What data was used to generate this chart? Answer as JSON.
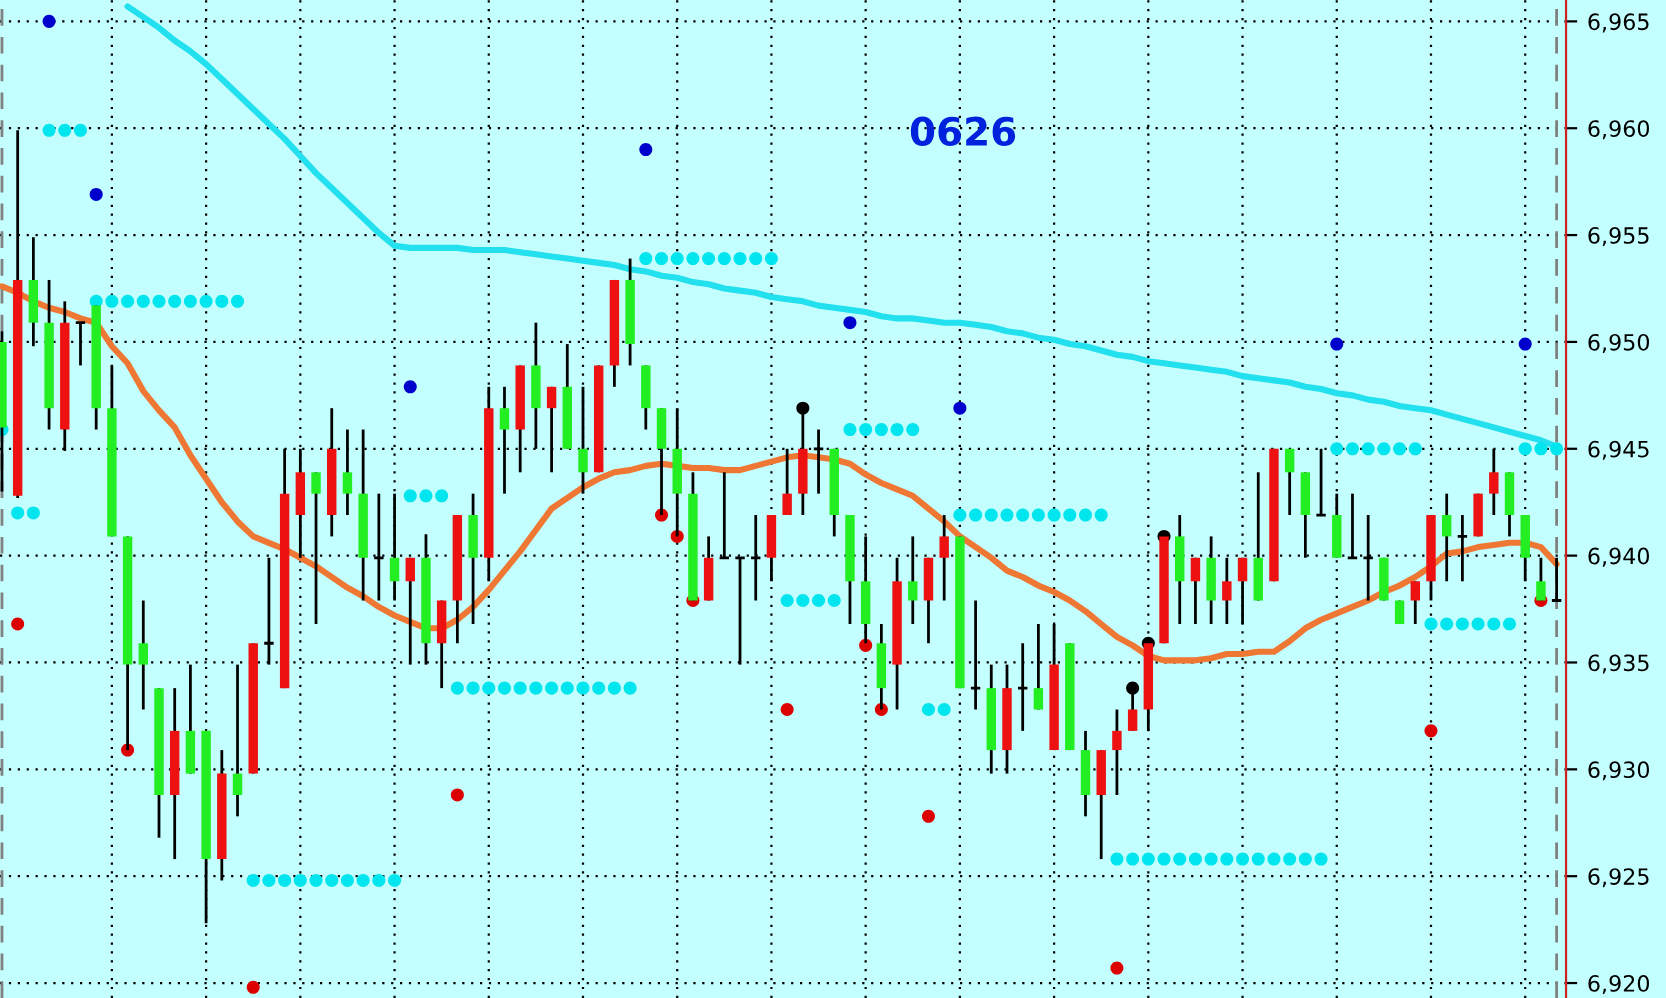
{
  "chart_data": {
    "type": "candlestick",
    "title": "0626",
    "categories": [
      null,
      null,
      null,
      null,
      null,
      null,
      null,
      null,
      null,
      null,
      null,
      null,
      null,
      null,
      null,
      null,
      null,
      null,
      null,
      null,
      null,
      null,
      null,
      null,
      null,
      null,
      null,
      null,
      null,
      null,
      null,
      null,
      null,
      null,
      null,
      null,
      null,
      null,
      null,
      null,
      null,
      null,
      null,
      null,
      null,
      null,
      null,
      null,
      null,
      null,
      null,
      null,
      null,
      null,
      null,
      null,
      null,
      null,
      null,
      null,
      null,
      null,
      null,
      null,
      null,
      null,
      null,
      null,
      null,
      null,
      null,
      null,
      null,
      null,
      null,
      null,
      null,
      null,
      null,
      null,
      null,
      null,
      null,
      null,
      null,
      null,
      null,
      null,
      null,
      null,
      null,
      null,
      null,
      null,
      null,
      null,
      null,
      null,
      null,
      null
    ],
    "ohlc": [
      [
        6950,
        6950.5,
        6943,
        6946
      ],
      [
        6942.8,
        6959.9,
        6942.7,
        6952.9
      ],
      [
        6952.9,
        6954.9,
        6949.8,
        6950.9
      ],
      [
        6950.9,
        6952.9,
        6945.9,
        6946.9
      ],
      [
        6945.9,
        6951.9,
        6944.9,
        6950.9
      ],
      [
        6950.9,
        6950.9,
        6948.9,
        6950.9
      ],
      [
        6951.7,
        6951.7,
        6945.9,
        6946.9
      ],
      [
        6946.9,
        6948.9,
        6940.9,
        6940.9
      ],
      [
        6940.9,
        6940.9,
        6930.9,
        6934.9
      ],
      [
        6935.9,
        6937.9,
        6932.8,
        6934.9
      ],
      [
        6933.8,
        6933.8,
        6926.8,
        6928.8
      ],
      [
        6928.8,
        6933.8,
        6925.8,
        6931.8
      ],
      [
        6931.8,
        6934.9,
        6929.8,
        6929.8
      ],
      [
        6931.8,
        6931.8,
        6922.8,
        6925.8
      ],
      [
        6925.8,
        6930.9,
        6924.8,
        6929.8
      ],
      [
        6929.8,
        6934.9,
        6927.8,
        6928.8
      ],
      [
        6929.8,
        6935.9,
        6929.8,
        6935.9
      ],
      [
        6935.9,
        6939.9,
        6934.9,
        6935.9
      ],
      [
        6933.8,
        6945,
        6933.8,
        6942.9
      ],
      [
        6941.9,
        6945,
        6939.9,
        6943.9
      ],
      [
        6943.9,
        6943.9,
        6936.8,
        6942.9
      ],
      [
        6941.9,
        6946.9,
        6940.9,
        6945
      ],
      [
        6943.9,
        6945.9,
        6941.9,
        6942.9
      ],
      [
        6942.9,
        6945.9,
        6937.9,
        6939.9
      ],
      [
        6939.9,
        6942.9,
        6937.9,
        6939.9
      ],
      [
        6939.9,
        6942.9,
        6937.9,
        6938.8
      ],
      [
        6938.8,
        6939.9,
        6934.9,
        6939.9
      ],
      [
        6939.9,
        6941,
        6934.9,
        6935.9
      ],
      [
        6935.9,
        6937.9,
        6933.8,
        6937.9
      ],
      [
        6937.9,
        6941.9,
        6935.9,
        6941.9
      ],
      [
        6941.9,
        6942.9,
        6936.8,
        6939.9
      ],
      [
        6939.9,
        6947.9,
        6938.8,
        6946.9
      ],
      [
        6946.9,
        6947.9,
        6942.9,
        6945.9
      ],
      [
        6945.9,
        6948.9,
        6943.9,
        6948.9
      ],
      [
        6948.9,
        6950.9,
        6945,
        6946.9
      ],
      [
        6946.9,
        6947.9,
        6943.9,
        6947.9
      ],
      [
        6947.9,
        6949.9,
        6945,
        6945
      ],
      [
        6945,
        6947.9,
        6942.9,
        6943.9
      ],
      [
        6943.9,
        6948.9,
        6943.9,
        6948.9
      ],
      [
        6948.9,
        6952.9,
        6947.9,
        6952.9
      ],
      [
        6952.9,
        6953.9,
        6948.9,
        6949.9
      ],
      [
        6948.9,
        6948.9,
        6945.9,
        6946.9
      ],
      [
        6946.9,
        6946.9,
        6941.9,
        6945
      ],
      [
        6945,
        6946.9,
        6940.9,
        6942.9
      ],
      [
        6942.9,
        6943.9,
        6937.9,
        6937.9
      ],
      [
        6937.9,
        6940.9,
        6937.9,
        6939.9
      ],
      [
        6939.9,
        6943.9,
        6939.9,
        6939.9
      ],
      [
        6939.9,
        6939.9,
        6934.9,
        6939.9
      ],
      [
        6939.9,
        6941.9,
        6937.9,
        6939.9
      ],
      [
        6939.9,
        6941.9,
        6938.8,
        6941.9
      ],
      [
        6941.9,
        6945,
        6941.9,
        6942.9
      ],
      [
        6942.9,
        6946.9,
        6941.9,
        6945
      ],
      [
        6945,
        6945.9,
        6942.9,
        6945
      ],
      [
        6945,
        6945,
        6940.9,
        6941.9
      ],
      [
        6941.9,
        6941.9,
        6936.8,
        6938.8
      ],
      [
        6938.8,
        6940.9,
        6935.9,
        6936.8
      ],
      [
        6935.9,
        6936.8,
        6932.8,
        6933.8
      ],
      [
        6934.9,
        6939.9,
        6932.8,
        6938.8
      ],
      [
        6938.8,
        6940.9,
        6936.8,
        6937.9
      ],
      [
        6937.9,
        6939.9,
        6935.9,
        6939.9
      ],
      [
        6939.9,
        6941.9,
        6937.9,
        6940.9
      ],
      [
        6940.9,
        6940.9,
        6933.8,
        6933.8
      ],
      [
        6933.8,
        6937.9,
        6932.8,
        6933.8
      ],
      [
        6933.8,
        6934.9,
        6929.8,
        6930.9
      ],
      [
        6930.9,
        6934.9,
        6929.8,
        6933.8
      ],
      [
        6933.8,
        6935.9,
        6931.8,
        6933.8
      ],
      [
        6933.8,
        6936.8,
        6932.8,
        6932.8
      ],
      [
        6930.9,
        6936.8,
        6930.9,
        6934.9
      ],
      [
        6935.9,
        6935.9,
        6930.9,
        6930.9
      ],
      [
        6930.9,
        6931.8,
        6927.8,
        6928.8
      ],
      [
        6928.8,
        6930.9,
        6925.8,
        6930.9
      ],
      [
        6930.9,
        6932.8,
        6928.8,
        6931.8
      ],
      [
        6931.8,
        6933.8,
        6931.8,
        6932.8
      ],
      [
        6932.8,
        6935.9,
        6931.8,
        6935.9
      ],
      [
        6935.9,
        6940.9,
        6935.9,
        6940.9
      ],
      [
        6940.9,
        6941.9,
        6936.8,
        6938.8
      ],
      [
        6938.8,
        6939.9,
        6936.8,
        6939.9
      ],
      [
        6939.9,
        6940.9,
        6936.8,
        6937.9
      ],
      [
        6937.9,
        6939.9,
        6936.8,
        6938.8
      ],
      [
        6938.8,
        6939.9,
        6936.8,
        6939.9
      ],
      [
        6939.9,
        6943.9,
        6937.9,
        6937.9
      ],
      [
        6938.8,
        6945,
        6938.8,
        6945
      ],
      [
        6945,
        6945,
        6941.9,
        6943.9
      ],
      [
        6943.9,
        6943.9,
        6939.9,
        6941.9
      ],
      [
        6941.9,
        6945,
        6941.9,
        6941.9
      ],
      [
        6941.9,
        6942.9,
        6939.9,
        6939.9
      ],
      [
        6939.9,
        6942.9,
        6939.9,
        6939.9
      ],
      [
        6939.9,
        6941.9,
        6937.9,
        6939.9
      ],
      [
        6939.9,
        6939.9,
        6937.9,
        6937.9
      ],
      [
        6937.9,
        6937.9,
        6936.8,
        6936.8
      ],
      [
        6937.9,
        6938.8,
        6936.8,
        6938.8
      ],
      [
        6938.8,
        6941.9,
        6937.9,
        6941.9
      ],
      [
        6941.9,
        6942.9,
        6938.8,
        6940.9
      ],
      [
        6940.9,
        6941.9,
        6938.8,
        6940.9
      ],
      [
        6940.9,
        6942.9,
        6940.9,
        6942.9
      ],
      [
        6942.9,
        6945,
        6941.9,
        6943.9
      ],
      [
        6943.9,
        6943.9,
        6940.9,
        6941.9
      ],
      [
        6941.9,
        6941.9,
        6938.8,
        6939.9
      ],
      [
        6938.8,
        6939.9,
        6937.9,
        6937.9
      ],
      [
        6937.9,
        6939.9,
        6937.9,
        6937.9
      ]
    ],
    "colors": [
      "#22ee22",
      "#ee1111",
      "#22ee22",
      "#22ee22",
      "#ee1111",
      "#000000",
      "#22ee22",
      "#22ee22",
      "#22ee22",
      "#22ee22",
      "#22ee22",
      "#ee1111",
      "#22ee22",
      "#22ee22",
      "#ee1111",
      "#22ee22",
      "#ee1111",
      "#000000",
      "#ee1111",
      "#ee1111",
      "#22ee22",
      "#ee1111",
      "#22ee22",
      "#22ee22",
      "#000000",
      "#22ee22",
      "#ee1111",
      "#22ee22",
      "#ee1111",
      "#ee1111",
      "#22ee22",
      "#ee1111",
      "#22ee22",
      "#ee1111",
      "#22ee22",
      "#ee1111",
      "#22ee22",
      "#22ee22",
      "#ee1111",
      "#ee1111",
      "#22ee22",
      "#22ee22",
      "#22ee22",
      "#22ee22",
      "#22ee22",
      "#ee1111",
      "#000000",
      "#000000",
      "#000000",
      "#ee1111",
      "#ee1111",
      "#ee1111",
      "#000000",
      "#22ee22",
      "#22ee22",
      "#22ee22",
      "#22ee22",
      "#ee1111",
      "#22ee22",
      "#ee1111",
      "#ee1111",
      "#22ee22",
      "#000000",
      "#22ee22",
      "#ee1111",
      "#000000",
      "#22ee22",
      "#ee1111",
      "#22ee22",
      "#22ee22",
      "#ee1111",
      "#ee1111",
      "#ee1111",
      "#ee1111",
      "#ee1111",
      "#22ee22",
      "#ee1111",
      "#22ee22",
      "#ee1111",
      "#ee1111",
      "#22ee22",
      "#ee1111",
      "#22ee22",
      "#22ee22",
      "#000000",
      "#22ee22",
      "#000000",
      "#000000",
      "#22ee22",
      "#22ee22",
      "#ee1111",
      "#ee1111",
      "#22ee22",
      "#000000",
      "#ee1111",
      "#ee1111",
      "#22ee22",
      "#22ee22",
      "#22ee22",
      "#000000"
    ],
    "series": [
      {
        "type": "line",
        "color": "#22e0ee",
        "values": [
          null,
          null,
          null,
          null,
          null,
          null,
          null,
          null,
          6965.7,
          6965.2,
          6964.7,
          6964.1,
          6963.6,
          6963,
          6962.3,
          6961.6,
          6960.9,
          6960.2,
          6959.5,
          6958.7,
          6957.9,
          6957.2,
          6956.5,
          6955.8,
          6955.1,
          6954.5,
          6954.4,
          6954.4,
          6954.4,
          6954.4,
          6954.3,
          6954.3,
          6954.3,
          6954.2,
          6954.1,
          6954,
          6953.9,
          6953.8,
          6953.7,
          6953.6,
          6953.4,
          6953.3,
          6953.1,
          6953,
          6952.8,
          6952.7,
          6952.5,
          6952.4,
          6952.3,
          6952.1,
          6952,
          6951.9,
          6951.7,
          6951.6,
          6951.5,
          6951.4,
          6951.2,
          6951.1,
          6951.1,
          6951,
          6950.9,
          6950.9,
          6950.8,
          6950.7,
          6950.5,
          6950.4,
          6950.2,
          6950.1,
          6949.9,
          6949.8,
          6949.6,
          6949.4,
          6949.3,
          6949.1,
          6949,
          6948.9,
          6948.8,
          6948.7,
          6948.6,
          6948.4,
          6948.3,
          6948.2,
          6948.1,
          6947.9,
          6947.8,
          6947.6,
          6947.5,
          6947.3,
          6947.2,
          6947,
          6946.9,
          6946.8,
          6946.6,
          6946.4,
          6946.2,
          6946,
          6945.8,
          6945.6,
          6945.4,
          6945.1
        ]
      },
      {
        "type": "line",
        "color": "#ee7733",
        "values": [
          6952.6,
          6952.3,
          6951.9,
          6951.6,
          6951.4,
          6951.1,
          6950.9,
          6949.8,
          6949,
          6947.7,
          6946.8,
          6946,
          6944.7,
          6943.6,
          6942.5,
          6941.6,
          6940.9,
          6940.6,
          6940.3,
          6939.9,
          6939.5,
          6939,
          6938.5,
          6938.1,
          6937.6,
          6937.2,
          6936.9,
          6936.6,
          6936.6,
          6937,
          6937.6,
          6938.4,
          6939.3,
          6940.2,
          6941.2,
          6942.2,
          6942.7,
          6943.2,
          6943.6,
          6943.9,
          6944,
          6944.2,
          6944.3,
          6944.2,
          6944.1,
          6944.1,
          6944,
          6944,
          6944.2,
          6944.4,
          6944.6,
          6944.7,
          6944.6,
          6944.5,
          6944.3,
          6943.8,
          6943.4,
          6943.1,
          6942.8,
          6942.2,
          6941.6,
          6940.9,
          6940.4,
          6939.9,
          6939.3,
          6939,
          6938.6,
          6938.3,
          6937.9,
          6937.4,
          6936.8,
          6936.2,
          6935.8,
          6935.3,
          6935.1,
          6935.1,
          6935.1,
          6935.2,
          6935.4,
          6935.4,
          6935.5,
          6935.5,
          6936,
          6936.6,
          6937,
          6937.3,
          6937.6,
          6937.9,
          6938.3,
          6938.6,
          6939,
          6939.5,
          6940.1,
          6940.2,
          6940.4,
          6940.5,
          6940.6,
          6940.6,
          6940.4,
          6939.6
        ]
      },
      {
        "type": "scatter",
        "color": "#00e5ee",
        "marker": "circle",
        "values": [
          6945.9,
          6942,
          6942,
          6959.9,
          6959.9,
          6959.9,
          6951.9,
          6951.9,
          6951.9,
          6951.9,
          6951.9,
          6951.9,
          6951.9,
          6951.9,
          6951.9,
          6951.9,
          6924.8,
          6924.8,
          6924.8,
          6924.8,
          6924.8,
          6924.8,
          6924.8,
          6924.8,
          6924.8,
          6924.8,
          6942.8,
          6942.8,
          6942.8,
          6933.8,
          6933.8,
          6933.8,
          6933.8,
          6933.8,
          6933.8,
          6933.8,
          6933.8,
          6933.8,
          6933.8,
          6933.8,
          6933.8,
          6953.9,
          6953.9,
          6953.9,
          6953.9,
          6953.9,
          6953.9,
          6953.9,
          6953.9,
          6953.9,
          6937.9,
          6937.9,
          6937.9,
          6937.9,
          6945.9,
          6945.9,
          6945.9,
          6945.9,
          6945.9,
          6932.8,
          6932.8,
          6941.9,
          6941.9,
          6941.9,
          6941.9,
          6941.9,
          6941.9,
          6941.9,
          6941.9,
          6941.9,
          6941.9,
          6925.8,
          6925.8,
          6925.8,
          6925.8,
          6925.8,
          6925.8,
          6925.8,
          6925.8,
          6925.8,
          6925.8,
          6925.8,
          6925.8,
          6925.8,
          6925.8,
          6945,
          6945,
          6945,
          6945,
          6945,
          6945,
          6936.8,
          6936.8,
          6936.8,
          6936.8,
          6936.8,
          6936.8,
          6945,
          6945,
          6945
        ]
      },
      {
        "type": "scatter",
        "color": "#0000cc",
        "marker": "circle",
        "values": [
          null,
          null,
          null,
          6965,
          null,
          null,
          6956.9,
          null,
          null,
          null,
          null,
          null,
          null,
          null,
          null,
          null,
          null,
          null,
          null,
          null,
          null,
          null,
          null,
          null,
          null,
          null,
          6947.9,
          null,
          null,
          null,
          null,
          null,
          null,
          null,
          null,
          null,
          null,
          null,
          null,
          null,
          null,
          6959,
          null,
          null,
          null,
          null,
          null,
          null,
          null,
          null,
          null,
          null,
          null,
          null,
          6950.9,
          null,
          null,
          null,
          null,
          null,
          null,
          6946.9,
          null,
          null,
          null,
          null,
          null,
          null,
          null,
          null,
          null,
          null,
          null,
          null,
          null,
          null,
          null,
          null,
          null,
          null,
          null,
          null,
          null,
          null,
          null,
          6949.9,
          null,
          null,
          null,
          null,
          null,
          null,
          null,
          null,
          null,
          null,
          null,
          6949.9,
          null,
          null
        ]
      },
      {
        "type": "scatter",
        "color": "#dd0000",
        "marker": "circle",
        "values": [
          null,
          6936.8,
          null,
          null,
          null,
          null,
          null,
          null,
          6930.9,
          null,
          null,
          null,
          null,
          null,
          null,
          null,
          6919.8,
          null,
          null,
          null,
          null,
          null,
          null,
          null,
          null,
          null,
          null,
          null,
          null,
          6928.8,
          null,
          null,
          null,
          null,
          null,
          null,
          null,
          null,
          null,
          null,
          null,
          null,
          6941.9,
          6940.9,
          6937.9,
          null,
          null,
          null,
          null,
          null,
          6932.8,
          null,
          null,
          null,
          null,
          6935.8,
          6932.8,
          null,
          null,
          6927.8,
          null,
          null,
          null,
          null,
          null,
          null,
          null,
          null,
          null,
          null,
          null,
          6920.7,
          null,
          null,
          null,
          null,
          null,
          null,
          null,
          null,
          null,
          null,
          null,
          null,
          null,
          null,
          null,
          null,
          null,
          null,
          null,
          6931.8,
          null,
          null,
          null,
          null,
          null,
          null,
          6937.9,
          null
        ]
      },
      {
        "type": "scatter",
        "color": "#000000",
        "marker": "circle",
        "values": [
          null,
          null,
          null,
          null,
          null,
          null,
          null,
          null,
          null,
          null,
          null,
          null,
          null,
          null,
          null,
          null,
          null,
          null,
          null,
          null,
          null,
          null,
          null,
          null,
          null,
          null,
          null,
          null,
          null,
          null,
          null,
          null,
          null,
          null,
          null,
          null,
          null,
          null,
          null,
          null,
          null,
          null,
          null,
          null,
          null,
          null,
          null,
          null,
          null,
          null,
          null,
          6946.9,
          null,
          null,
          null,
          null,
          null,
          null,
          null,
          null,
          null,
          null,
          null,
          null,
          null,
          null,
          null,
          null,
          null,
          null,
          null,
          null,
          6933.8,
          6935.9,
          6940.9,
          null,
          null,
          null,
          null,
          null,
          null,
          null,
          null,
          null,
          null,
          null,
          null,
          null,
          null,
          null,
          null,
          null,
          null,
          null,
          null,
          null,
          null,
          null,
          null,
          null
        ]
      }
    ],
    "ylim": [
      6919.3,
      6966
    ],
    "yticks": [
      {
        "value": 6920,
        "label": "6,920"
      },
      {
        "value": 6925,
        "label": "6,925"
      },
      {
        "value": 6930,
        "label": "6,930"
      },
      {
        "value": 6935,
        "label": "6,935"
      },
      {
        "value": 6940,
        "label": "6,940"
      },
      {
        "value": 6945,
        "label": "6,945"
      },
      {
        "value": 6950,
        "label": "6,950"
      },
      {
        "value": 6955,
        "label": "6,955"
      },
      {
        "value": 6960,
        "label": "6,960"
      },
      {
        "value": 6965,
        "label": "6,965"
      }
    ],
    "grid": true,
    "tick_labels": "y"
  }
}
